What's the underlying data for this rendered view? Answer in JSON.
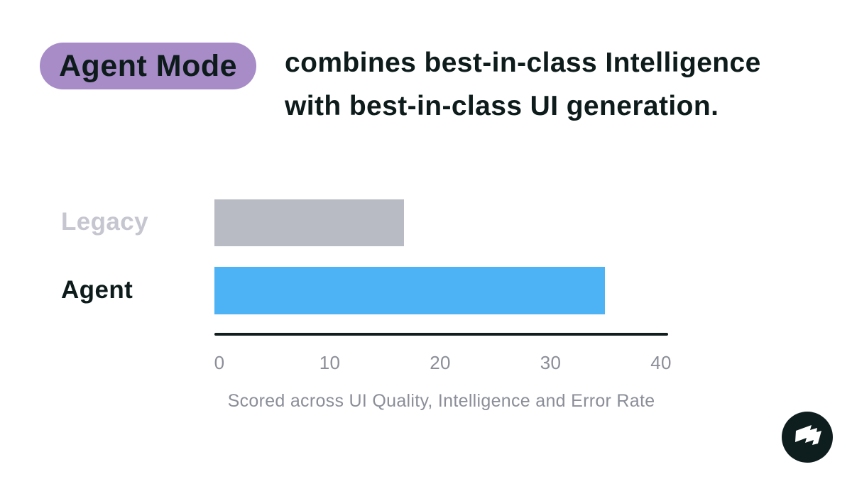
{
  "header": {
    "badge_label": "Agent Mode",
    "title_line1": "combines best-in-class Intelligence",
    "title_line2": "with best-in-class UI generation."
  },
  "chart_data": {
    "type": "bar",
    "orientation": "horizontal",
    "categories": [
      "Legacy",
      "Agent"
    ],
    "values": [
      17,
      35
    ],
    "xlim": [
      0,
      40
    ],
    "ticks": [
      "0",
      "10",
      "20",
      "30",
      "40"
    ],
    "grid": false,
    "legend": false,
    "bar_colors": [
      "#b8bac4",
      "#4db3f5"
    ],
    "caption": "Scored across UI Quality, Intelligence and Error Rate"
  },
  "colors": {
    "badge_bg": "#a78cc8",
    "text_dark": "#0e1b1b",
    "muted_gray": "#8b8e98",
    "legacy_label": "#c6c6d0",
    "axis_line": "#121d1d",
    "logo_bg": "#0e1d1d"
  },
  "logo": {
    "icon": "flag-badge-icon"
  }
}
